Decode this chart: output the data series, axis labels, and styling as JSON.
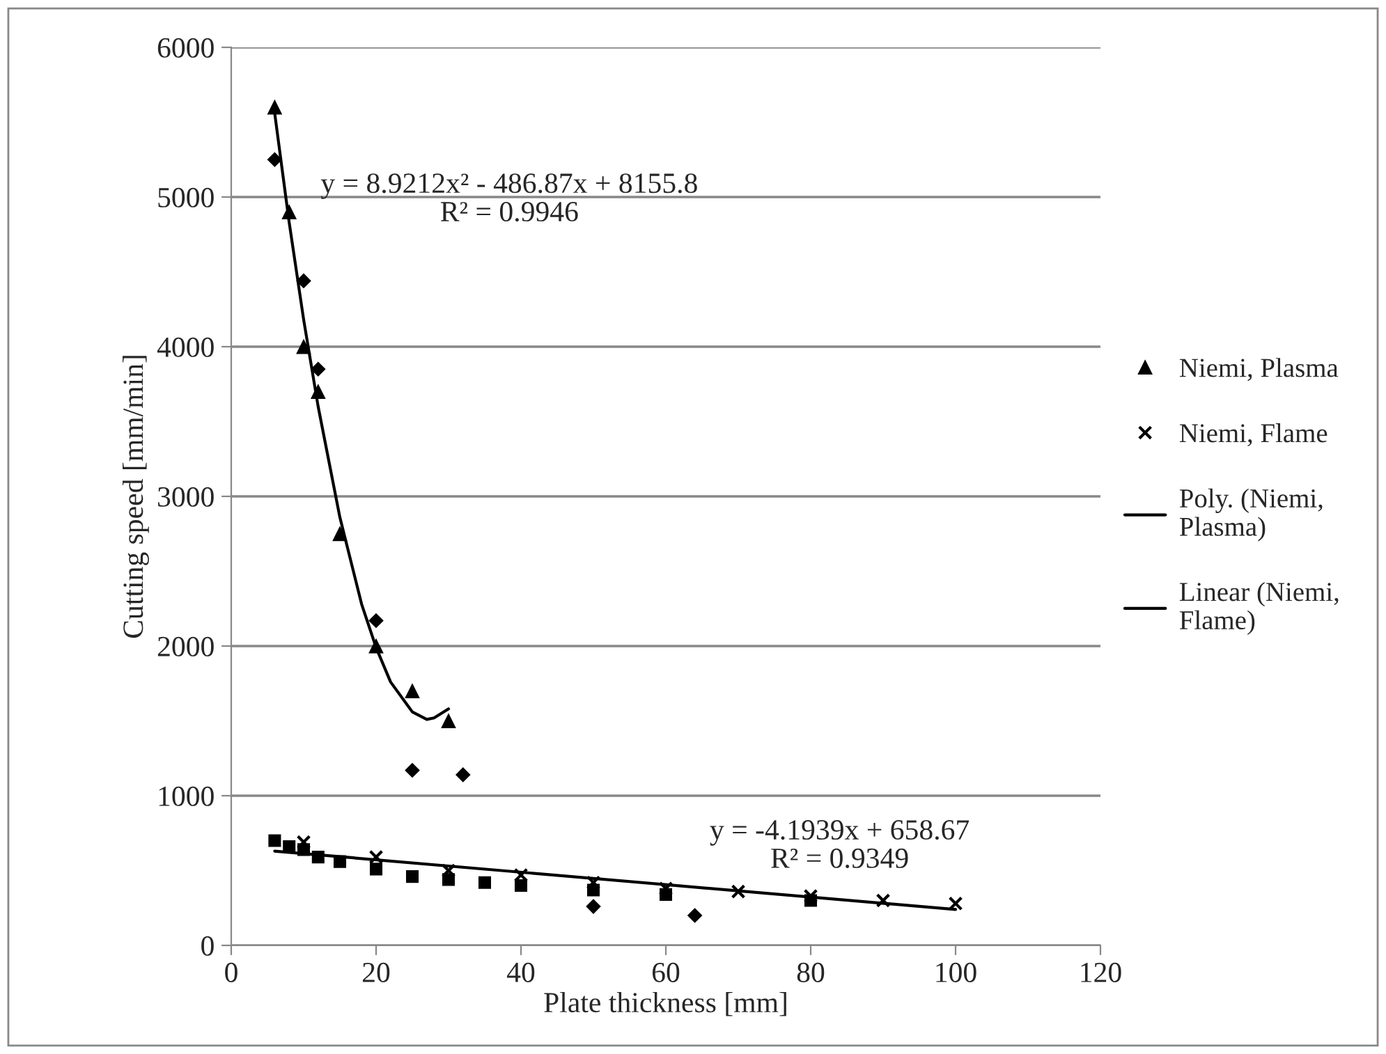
{
  "chart_data": {
    "type": "scatter",
    "xlabel": "Plate thickness [mm]",
    "ylabel": "Cutting speed [mm/min]",
    "xlim": [
      0,
      120
    ],
    "ylim": [
      0,
      6000
    ],
    "xticks": [
      0,
      20,
      40,
      60,
      80,
      100,
      120
    ],
    "yticks": [
      0,
      1000,
      2000,
      3000,
      4000,
      5000,
      6000
    ],
    "grid": "y",
    "legend": "right",
    "series": [
      {
        "name": "Niemi, Plasma",
        "color": "#000000",
        "marker": "triangle",
        "x": [
          6,
          8,
          10,
          12,
          15,
          20,
          25,
          30
        ],
        "values": [
          5600,
          4900,
          4000,
          3700,
          2750,
          2000,
          1700,
          1500
        ]
      },
      {
        "name": "Niemi, Flame",
        "color": "#000000",
        "marker": "cross",
        "x": [
          10,
          20,
          30,
          40,
          50,
          60,
          70,
          80,
          90,
          100
        ],
        "values": [
          690,
          590,
          500,
          470,
          420,
          380,
          360,
          330,
          300,
          280
        ]
      },
      {
        "color": "#000000",
        "marker": "diamond",
        "x": [
          6,
          10,
          12,
          20,
          25,
          32,
          50,
          64
        ],
        "values": [
          5250,
          4440,
          3850,
          2170,
          1170,
          1140,
          260,
          200
        ]
      },
      {
        "color": "#000000",
        "marker": "square",
        "x": [
          6,
          8,
          10,
          12,
          15,
          20,
          25,
          30,
          35,
          40,
          50,
          60,
          80
        ],
        "values": [
          700,
          660,
          640,
          590,
          560,
          510,
          460,
          440,
          420,
          400,
          370,
          340,
          300
        ]
      },
      {
        "name": "Poly. (Niemi, Plasma)",
        "type": "line",
        "color": "#000000",
        "marker": "none",
        "x": [
          6,
          8,
          10,
          12,
          15,
          18,
          20,
          22,
          25,
          27,
          28,
          30
        ],
        "values": [
          5560,
          4830,
          4180,
          3600,
          2860,
          2280,
          1990,
          1760,
          1560,
          1510,
          1520,
          1580
        ]
      },
      {
        "name": "Linear (Niemi, Flame)",
        "type": "line",
        "color": "#000000",
        "marker": "none",
        "x": [
          6,
          100
        ],
        "values": [
          630,
          240
        ]
      }
    ],
    "annotations": [
      "y = 8.9212x² - 486.87x + 8155.8\nR² = 0.9946",
      "y = -4.1939x + 658.67\nR² = 0.9349"
    ]
  }
}
